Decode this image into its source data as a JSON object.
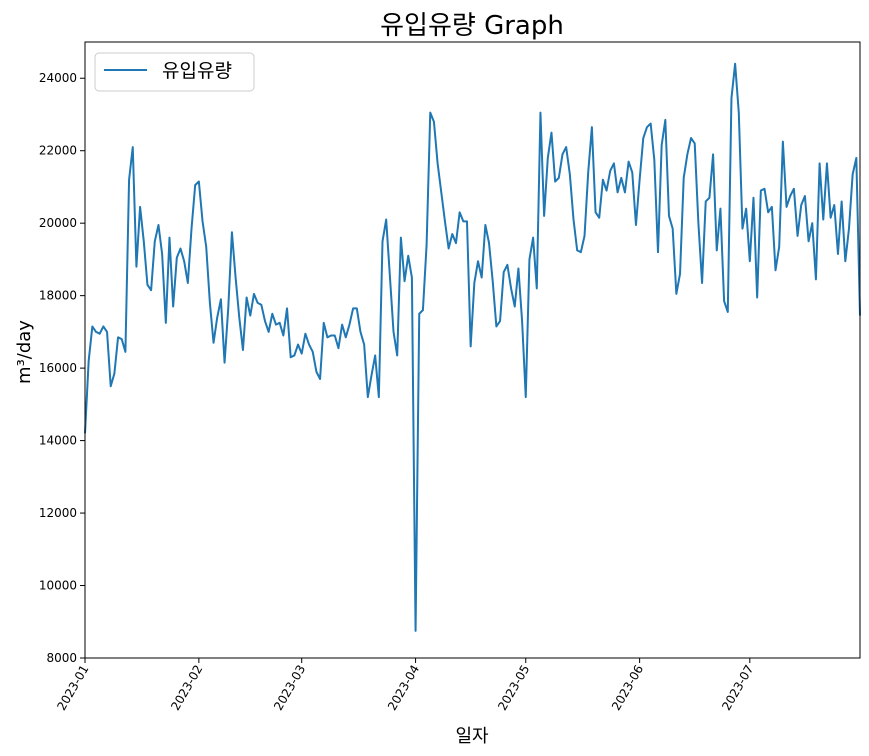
{
  "chart_data": {
    "type": "line",
    "title": "유입유량 Graph",
    "xlabel": "일자",
    "ylabel": "m³/day",
    "x_start": "2023-01-01",
    "x_end": "2023-07-31",
    "ylim": [
      8000,
      25000
    ],
    "yticks": [
      "8000",
      "10000",
      "12000",
      "14000",
      "16000",
      "18000",
      "20000",
      "22000",
      "24000"
    ],
    "xticks": [
      {
        "label": "2023-01",
        "date": "2023-01-01"
      },
      {
        "label": "2023-02",
        "date": "2023-02-01"
      },
      {
        "label": "2023-03",
        "date": "2023-03-01"
      },
      {
        "label": "2023-04",
        "date": "2023-04-01"
      },
      {
        "label": "2023-05",
        "date": "2023-05-01"
      },
      {
        "label": "2023-06",
        "date": "2023-06-01"
      },
      {
        "label": "2023-07",
        "date": "2023-07-01"
      }
    ],
    "legend_position": "top-left",
    "grid": false,
    "series": [
      {
        "name": "유입유량",
        "color": "#1f77b4",
        "values": [
          14200,
          16200,
          17150,
          17000,
          16950,
          17150,
          17000,
          15500,
          15850,
          16850,
          16800,
          16450,
          21200,
          22100,
          18800,
          20450,
          19500,
          18300,
          18150,
          19500,
          19950,
          19150,
          17250,
          19600,
          17700,
          19050,
          19300,
          18950,
          18350,
          19850,
          21050,
          21150,
          20050,
          19350,
          17800,
          16700,
          17400,
          17900,
          16150,
          17650,
          19750,
          18500,
          17400,
          16500,
          17950,
          17450,
          18050,
          17800,
          17750,
          17300,
          17000,
          17500,
          17200,
          17250,
          16900,
          17650,
          16300,
          16350,
          16650,
          16400,
          16950,
          16650,
          16450,
          15900,
          15700,
          17250,
          16850,
          16900,
          16900,
          16550,
          17200,
          16850,
          17200,
          17650,
          17650,
          17000,
          16650,
          15200,
          15800,
          16350,
          15200,
          19500,
          20100,
          18550,
          17000,
          16350,
          19600,
          18400,
          19100,
          18500,
          8750,
          17500,
          17600,
          19400,
          23050,
          22800,
          21650,
          20850,
          20050,
          19300,
          19700,
          19450,
          20300,
          20050,
          20050,
          16600,
          18350,
          18950,
          18500,
          19950,
          19450,
          18400,
          17150,
          17300,
          18650,
          18850,
          18200,
          17700,
          18750,
          17300,
          15200,
          19000,
          19600,
          18200,
          23050,
          20200,
          21800,
          22500,
          21150,
          21250,
          21900,
          22100,
          21350,
          20100,
          19250,
          19200,
          19650,
          21400,
          22650,
          20300,
          20150,
          21200,
          20900,
          21450,
          21650,
          20850,
          21250,
          20850,
          21700,
          21400,
          19950,
          21200,
          22350,
          22650,
          22750,
          21750,
          19200,
          22150,
          22850,
          20200,
          19850,
          18050,
          18600,
          21250,
          21900,
          22350,
          22200,
          20000,
          18350,
          20600,
          20700,
          21900,
          19250,
          20400,
          17850,
          17550,
          23450,
          24400,
          23050,
          19850,
          20400,
          18950,
          20700,
          17950,
          20900,
          20950,
          20300,
          20450,
          18700,
          19350,
          22250,
          20450,
          20750,
          20950,
          19650,
          20500,
          20750,
          19500,
          20000,
          18450,
          21650,
          20100,
          21650,
          20150,
          20500,
          19150,
          20600,
          18950,
          19850,
          21350,
          21800,
          17450
        ]
      }
    ]
  }
}
